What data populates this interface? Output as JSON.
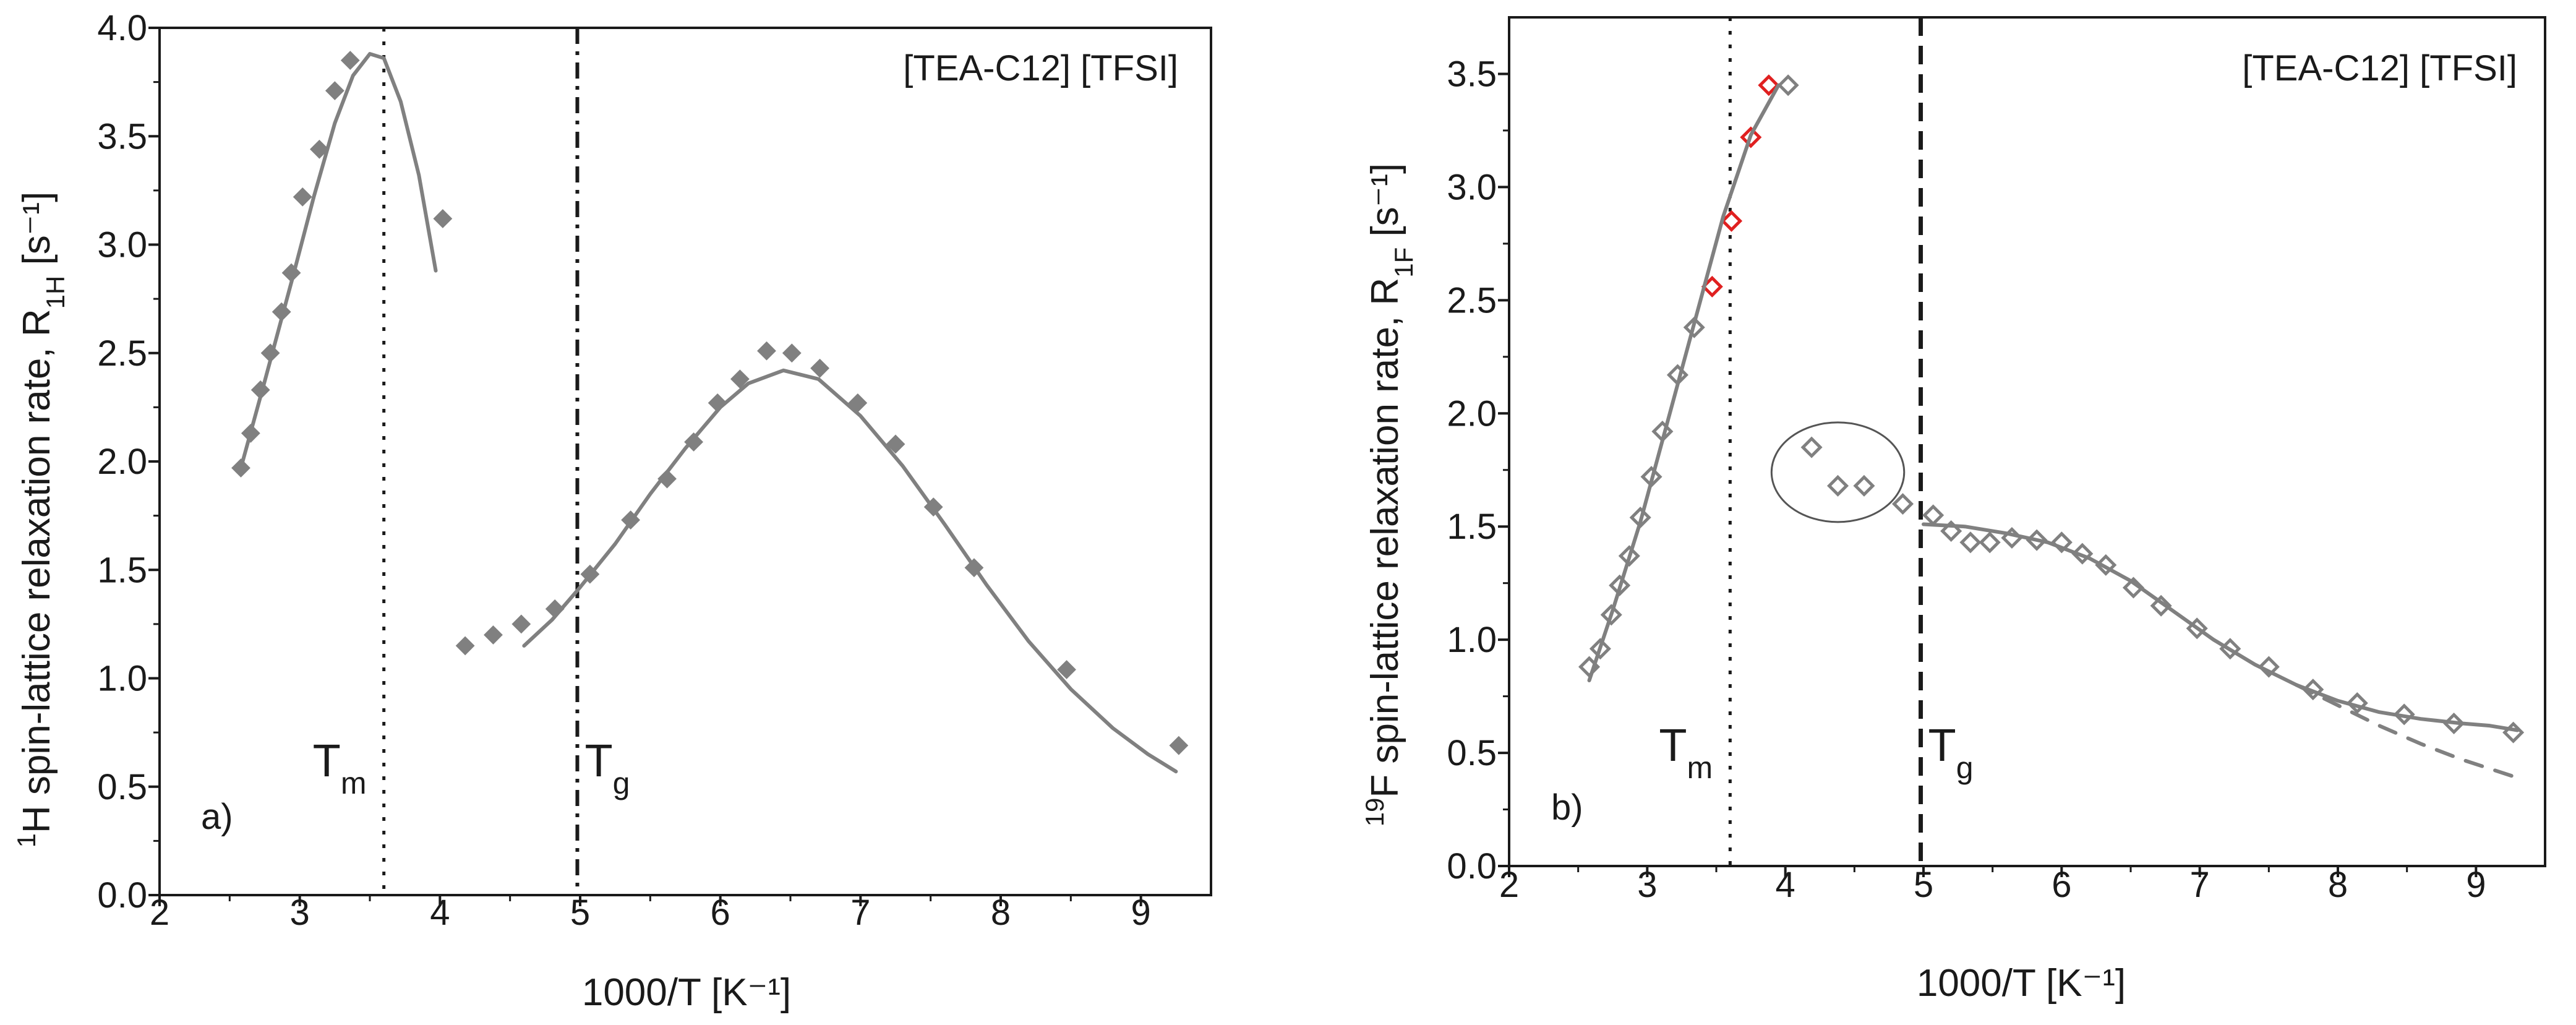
{
  "colors": {
    "series": "#808080",
    "highlight": "#e02020",
    "axis": "#1a1a1a"
  },
  "chart_data": [
    {
      "id": "a",
      "type": "scatter",
      "panel_label": "a)",
      "title": "[TEA-C12] [TFSI]",
      "xlabel": "1000/T [K⁻¹]",
      "ylabel_parts": [
        "1",
        "H spin-lattice relaxation rate, R",
        "1H",
        " [s⁻¹]"
      ],
      "xlim": [
        2,
        9.5
      ],
      "ylim": [
        0,
        4.0
      ],
      "xticks": [
        "2",
        "3",
        "4",
        "5",
        "6",
        "7",
        "8",
        "9"
      ],
      "yticks": [
        "0.0",
        "0.5",
        "1.0",
        "1.5",
        "2.0",
        "2.5",
        "3.0",
        "3.5",
        "4.0"
      ],
      "grid": false,
      "markers": [
        {
          "label": "T",
          "sub": "m",
          "x": 3.6,
          "style": "dotted"
        },
        {
          "label": "T",
          "sub": "g",
          "x": 4.98,
          "style": "dashdot"
        }
      ],
      "series": [
        {
          "marker": "diamond-filled",
          "x": [
            2.58,
            2.65,
            2.72,
            2.79,
            2.87,
            2.94,
            3.02,
            3.14,
            3.25,
            3.36,
            4.02,
            4.18,
            4.38,
            4.58,
            4.82,
            5.07,
            5.36,
            5.62,
            5.81,
            5.98,
            6.14,
            6.33,
            6.51,
            6.71,
            6.98,
            7.25,
            7.52,
            7.81,
            8.47,
            9.27
          ],
          "y": [
            1.97,
            2.13,
            2.33,
            2.5,
            2.69,
            2.87,
            3.22,
            3.44,
            3.71,
            3.85,
            3.12,
            1.15,
            1.2,
            1.25,
            1.32,
            1.48,
            1.73,
            1.92,
            2.09,
            2.27,
            2.38,
            2.51,
            2.5,
            2.43,
            2.27,
            2.08,
            1.79,
            1.51,
            1.04,
            0.69
          ]
        },
        {
          "name": "",
          "line": "solid",
          "x": [
            2.58,
            2.75,
            2.95,
            3.1,
            3.25,
            3.38,
            3.5,
            3.6,
            3.72,
            3.85,
            3.97
          ],
          "y": [
            1.97,
            2.37,
            2.85,
            3.22,
            3.56,
            3.78,
            3.88,
            3.86,
            3.66,
            3.32,
            2.88
          ]
        },
        {
          "name": "",
          "line": "solid",
          "x": [
            4.6,
            4.8,
            5.0,
            5.25,
            5.5,
            5.75,
            6.0,
            6.2,
            6.45,
            6.7,
            7.0,
            7.3,
            7.6,
            7.9,
            8.2,
            8.5,
            8.8,
            9.05,
            9.25
          ],
          "y": [
            1.15,
            1.27,
            1.42,
            1.62,
            1.85,
            2.06,
            2.25,
            2.36,
            2.42,
            2.38,
            2.21,
            1.98,
            1.71,
            1.43,
            1.17,
            0.95,
            0.77,
            0.65,
            0.57
          ]
        }
      ]
    },
    {
      "id": "b",
      "type": "scatter",
      "panel_label": "b)",
      "title": "[TEA-C12] [TFSI]",
      "xlabel": "1000/T [K⁻¹]",
      "ylabel_parts": [
        "19",
        "F spin-lattice relaxation rate, R",
        "1F",
        " [s⁻¹]"
      ],
      "xlim": [
        2,
        9.5
      ],
      "ylim": [
        0,
        3.75
      ],
      "xticks": [
        "2",
        "3",
        "4",
        "5",
        "6",
        "7",
        "8",
        "9"
      ],
      "yticks": [
        "0.0",
        "0.5",
        "1.0",
        "1.5",
        "2.0",
        "2.5",
        "3.0",
        "3.5"
      ],
      "grid": false,
      "markers": [
        {
          "label": "T",
          "sub": "m",
          "x": 3.6,
          "style": "dotted"
        },
        {
          "label": "T",
          "sub": "g",
          "x": 4.98,
          "style": "dashed"
        }
      ],
      "series": [
        {
          "marker": "diamond-open",
          "x": [
            2.58,
            2.66,
            2.74,
            2.8,
            2.87,
            2.95,
            3.03,
            3.11,
            3.22,
            3.34,
            4.02,
            4.19,
            4.38,
            4.57,
            4.85,
            5.07,
            5.2,
            5.34,
            5.48,
            5.64,
            5.82,
            6.0,
            6.15,
            6.32,
            6.52,
            6.72,
            6.98,
            7.22,
            7.5,
            7.82,
            8.14,
            8.48,
            8.84,
            9.27
          ],
          "y": [
            0.88,
            0.96,
            1.11,
            1.24,
            1.37,
            1.54,
            1.72,
            1.92,
            2.17,
            2.38,
            3.45,
            1.85,
            1.68,
            1.68,
            1.6,
            1.55,
            1.48,
            1.43,
            1.43,
            1.45,
            1.44,
            1.43,
            1.38,
            1.33,
            1.23,
            1.15,
            1.05,
            0.96,
            0.88,
            0.78,
            0.72,
            0.67,
            0.63,
            0.59
          ]
        },
        {
          "marker": "diamond-open-red",
          "x": [
            3.47,
            3.61,
            3.75,
            3.88
          ],
          "y": [
            2.56,
            2.85,
            3.22,
            3.45
          ]
        },
        {
          "name": "",
          "line": "solid",
          "x": [
            2.58,
            2.75,
            2.95,
            3.15,
            3.35,
            3.55,
            3.75,
            3.95
          ],
          "y": [
            0.82,
            1.13,
            1.52,
            1.97,
            2.42,
            2.87,
            3.23,
            3.45
          ]
        },
        {
          "name": "",
          "line": "solid",
          "x": [
            5.0,
            5.3,
            5.6,
            5.9,
            6.2,
            6.5,
            6.8,
            7.1,
            7.4,
            7.7,
            8.0,
            8.3,
            8.6,
            8.9,
            9.1,
            9.3
          ],
          "y": [
            1.51,
            1.5,
            1.47,
            1.43,
            1.36,
            1.26,
            1.13,
            1.0,
            0.89,
            0.8,
            0.73,
            0.68,
            0.65,
            0.63,
            0.62,
            0.6
          ]
        },
        {
          "name": "",
          "line": "dashed",
          "x": [
            7.7,
            8.0,
            8.3,
            8.6,
            8.9,
            9.3
          ],
          "y": [
            0.8,
            0.71,
            0.62,
            0.54,
            0.47,
            0.39
          ]
        }
      ],
      "annotations": [
        {
          "type": "ellipse",
          "x_center": 4.38,
          "y_center": 1.74,
          "x_radius": 0.48,
          "y_radius": 0.22
        }
      ]
    }
  ]
}
